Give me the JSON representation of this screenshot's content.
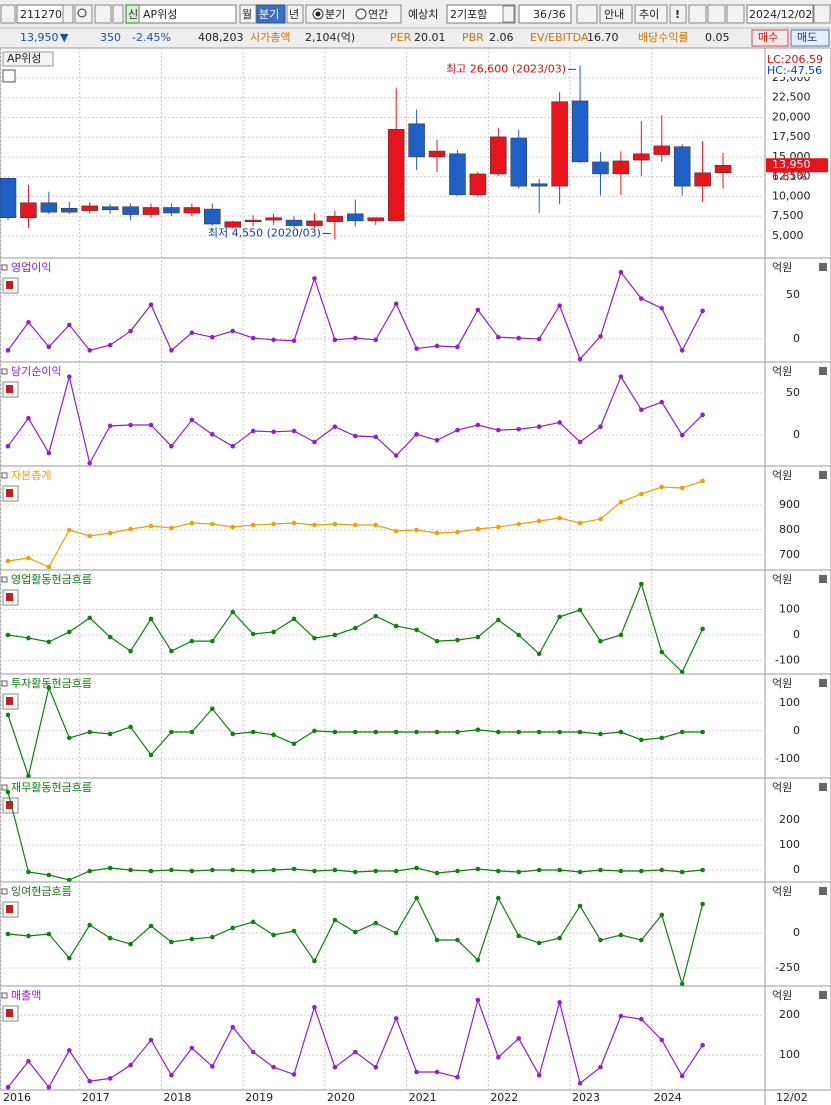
{
  "toolbar": {
    "code": "211270",
    "tag": "신",
    "name": "AP위성",
    "periods": [
      "월",
      "분기",
      "년"
    ],
    "radio": [
      "분기",
      "연간"
    ],
    "estimate_label": "예상치",
    "estimate_option": "2기포함",
    "count": "36",
    "count_total": "/36",
    "buttons": [
      "안내",
      "추이",
      "!"
    ],
    "date": "2024/12/02"
  },
  "info": {
    "price": "13,950",
    "arrow": "▼",
    "change": "350",
    "rate": "-2.45%",
    "volume": "408,203",
    "metrics": [
      {
        "label": "시가총액",
        "value": "2,104(억)"
      },
      {
        "label": "PER",
        "value": "20.01"
      },
      {
        "label": "PBR",
        "value": "2.06"
      },
      {
        "label": "EV/EBITDA",
        "value": "16.70"
      },
      {
        "label": "배당수익률",
        "value": "0.05"
      }
    ],
    "buttons": [
      "매수",
      "매도"
    ]
  },
  "chart_data": [
    {
      "type": "candlestick",
      "title": "AP위성",
      "lc": "LC:206.59",
      "hc": "HC:-47.56",
      "price_tag": "13,950",
      "change_tag": "6.81%",
      "up_color": "#e8141b",
      "down_color": "#1f5fc8",
      "categories": [
        "2016",
        null,
        null,
        null,
        "2017",
        null,
        null,
        null,
        "2018",
        null,
        null,
        null,
        "2019",
        null,
        null,
        null,
        "2020",
        null,
        null,
        null,
        "2021",
        null,
        null,
        null,
        "2022",
        null,
        null,
        null,
        "2023",
        null,
        null,
        null,
        "2024",
        null,
        null,
        null
      ],
      "date_label": "12/02",
      "open": [
        12300,
        7300,
        9200,
        8500,
        8200,
        8700,
        8700,
        7700,
        8600,
        7900,
        8400,
        6100,
        6800,
        7000,
        7000,
        6300,
        6800,
        7800,
        6900,
        6900,
        19200,
        15000,
        15400,
        10200,
        12850,
        17400,
        11600,
        11300,
        22100,
        14370,
        12850,
        14600,
        15300,
        16300,
        11300,
        13000
      ],
      "high": [
        12400,
        11450,
        10600,
        9300,
        9300,
        9000,
        9100,
        9100,
        9100,
        9100,
        9100,
        6900,
        7600,
        7800,
        7500,
        7900,
        8200,
        9600,
        7300,
        23700,
        21000,
        17150,
        15900,
        13100,
        18700,
        18400,
        12200,
        23200,
        26600,
        15600,
        15700,
        19550,
        20300,
        16600,
        17000,
        15500
      ],
      "low": [
        7000,
        6000,
        7800,
        7800,
        7800,
        7800,
        7000,
        7300,
        7500,
        7500,
        6300,
        6000,
        6200,
        6400,
        6000,
        6000,
        4550,
        6200,
        6400,
        6800,
        13350,
        13100,
        10100,
        10000,
        12600,
        11000,
        7900,
        9050,
        14250,
        10100,
        10200,
        12600,
        14400,
        10100,
        9300,
        11000
      ],
      "close": [
        7300,
        9200,
        8000,
        8000,
        8800,
        8300,
        7700,
        8600,
        7900,
        8600,
        6500,
        6800,
        7000,
        7300,
        6300,
        6900,
        7500,
        6900,
        7300,
        18500,
        15000,
        15750,
        10200,
        12850,
        17550,
        11300,
        11300,
        22000,
        14370,
        12850,
        14500,
        15400,
        16400,
        11300,
        13000,
        13950
      ],
      "ylim": [
        2200,
        28800
      ],
      "yticks": [
        {
          "value": 5000,
          "label": "5,000"
        },
        {
          "value": 7500,
          "label": "7,500"
        },
        {
          "value": 10000,
          "label": "10,000"
        },
        {
          "value": 12500,
          "label": "12,500"
        },
        {
          "value": 15000,
          "label": "15,000"
        },
        {
          "value": 17500,
          "label": "17,500"
        },
        {
          "value": 20000,
          "label": "20,000"
        },
        {
          "value": 22500,
          "label": "22,500"
        },
        {
          "value": 25000,
          "label": "25,000"
        }
      ],
      "annotations": [
        "최고 26,600 (2023/03)",
        "최저 4,550 (2020/03)"
      ]
    },
    {
      "type": "line",
      "title": "영업이익",
      "unit": "억원",
      "color": "#9020c8",
      "ylim": [
        -24,
        90
      ],
      "yticks": [
        50,
        0
      ],
      "values": [
        -13,
        19,
        -9,
        16,
        -13,
        -7,
        9,
        39,
        -13,
        7,
        2,
        9,
        1,
        -1,
        -2,
        69,
        -1,
        1,
        -1,
        40,
        -11,
        -8,
        -9,
        33,
        2,
        1,
        0,
        38,
        -23,
        3,
        76,
        46,
        35,
        -13,
        32
      ]
    },
    {
      "type": "line",
      "title": "당기순이익",
      "unit": "억원",
      "color": "#9020c8",
      "ylim": [
        -34,
        84
      ],
      "yticks": [
        50,
        0
      ],
      "values": [
        -13,
        20,
        -21,
        69,
        -33,
        11,
        12,
        12,
        -13,
        18,
        1,
        -13,
        5,
        4,
        5,
        -8,
        10,
        -1,
        -2,
        -24,
        1,
        -6,
        6,
        12,
        6,
        7,
        10,
        15,
        -8,
        10,
        69,
        30,
        39,
        0,
        24
      ]
    },
    {
      "type": "line",
      "title": "자본총계",
      "unit": "억원",
      "color": "#f0a000",
      "ylim": [
        648,
        1048
      ],
      "yticks": [
        900,
        800,
        700
      ],
      "values": [
        676,
        688,
        652,
        800,
        776,
        788,
        804,
        816,
        808,
        828,
        824,
        812,
        820,
        824,
        828,
        820,
        824,
        820,
        820,
        796,
        800,
        788,
        792,
        804,
        812,
        824,
        836,
        848,
        828,
        844,
        912,
        944,
        972,
        968,
        996
      ]
    },
    {
      "type": "line",
      "title": "영업활동현금흐름",
      "unit": "억원",
      "color": "#108010",
      "ylim": [
        -145,
        247
      ],
      "yticks": [
        100,
        0,
        -100
      ],
      "values": [
        0,
        -12,
        -27,
        12,
        67,
        -8,
        -63,
        63,
        -63,
        -24,
        -24,
        90,
        4,
        12,
        63,
        -12,
        0,
        27,
        74,
        35,
        20,
        -24,
        -20,
        -8,
        59,
        0,
        -74,
        71,
        98,
        -24,
        0,
        200,
        -67,
        -145,
        24
      ]
    },
    {
      "type": "line",
      "title": "투자활동현금흐름",
      "unit": "억원",
      "color": "#108010",
      "ylim": [
        -161,
        196
      ],
      "yticks": [
        100,
        0,
        -100
      ],
      "values": [
        57,
        -161,
        154,
        -25,
        -4,
        -11,
        14,
        -86,
        -4,
        -4,
        79,
        -11,
        -4,
        -14,
        -46,
        0,
        -4,
        -4,
        -4,
        -4,
        -4,
        -4,
        -4,
        4,
        -4,
        -4,
        -4,
        -4,
        -4,
        -11,
        -4,
        -32,
        -25,
        -4,
        -4
      ]
    },
    {
      "type": "line",
      "title": "재무활동현금흐름",
      "unit": "억원",
      "color": "#108010",
      "ylim": [
        -40,
        360
      ],
      "yticks": [
        200,
        100,
        0
      ],
      "values": [
        312,
        -8,
        -20,
        -40,
        -4,
        8,
        0,
        -4,
        0,
        -4,
        0,
        0,
        -4,
        0,
        4,
        -4,
        0,
        -8,
        -4,
        -4,
        8,
        -12,
        -4,
        4,
        -4,
        -8,
        0,
        0,
        -8,
        0,
        -4,
        -4,
        0,
        -8,
        0
      ]
    },
    {
      "type": "line",
      "title": "잉여현금흐름",
      "unit": "억원",
      "color": "#108010",
      "ylim": [
        -364,
        350
      ],
      "yticks": [
        0,
        -250
      ],
      "values": [
        -7,
        -21,
        -7,
        -179,
        57,
        -36,
        -79,
        50,
        -64,
        -43,
        -29,
        36,
        79,
        -14,
        14,
        -200,
        93,
        7,
        71,
        0,
        250,
        -50,
        -50,
        -193,
        250,
        -21,
        -71,
        -36,
        193,
        -50,
        -14,
        -50,
        129,
        -364,
        207
      ]
    },
    {
      "type": "line",
      "title": "매출액",
      "unit": "억원",
      "color": "#9020c8",
      "ylim": [
        18,
        268
      ],
      "yticks": [
        200,
        100
      ],
      "values": [
        20,
        85,
        20,
        112,
        35,
        42,
        75,
        138,
        50,
        118,
        72,
        170,
        108,
        70,
        52,
        220,
        70,
        108,
        70,
        192,
        58,
        58,
        45,
        238,
        95,
        142,
        50,
        232,
        30,
        70,
        198,
        190,
        138,
        48,
        125
      ]
    }
  ]
}
